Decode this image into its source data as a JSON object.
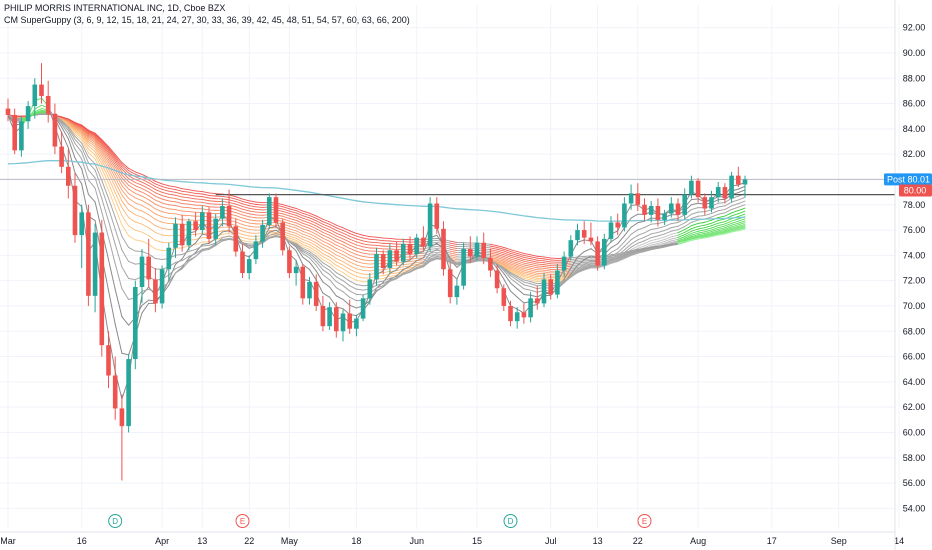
{
  "header": {
    "title": "PHILIP MORRIS INTERNATIONAL INC, 1D, Cboe BZX",
    "indicator": "CM SuperGuppy (3, 6, 9, 12, 15, 18, 21, 24, 27, 30, 33, 36, 39, 42, 45, 48, 51, 54, 57, 60, 63, 66, 200)"
  },
  "colors": {
    "up": "#26a69a",
    "down": "#ef5350",
    "ema200": "#7ec8d8",
    "gray": "#888888",
    "resistance": "#555555",
    "post_tag": "#2196f3",
    "price_tag": "#ef5350",
    "earnings_event": "#ef5350",
    "dividend_event": "#26a69a"
  },
  "price_tags": {
    "post_label": "Post",
    "post_value": "80.01",
    "last_value": "80.00"
  },
  "chart_data": {
    "type": "candlestick",
    "title": "PHILIP MORRIS INTERNATIONAL INC, 1D, Cboe BZX",
    "ylim": [
      53,
      93
    ],
    "y_ticks": [
      "92.00",
      "90.00",
      "88.00",
      "86.00",
      "84.00",
      "82.00",
      "80.00",
      "78.00",
      "76.00",
      "74.00",
      "72.00",
      "70.00",
      "68.00",
      "66.00",
      "64.00",
      "62.00",
      "60.00",
      "58.00",
      "56.00",
      "54.00"
    ],
    "x_ticks": [
      {
        "label": "Mar",
        "bar": 0
      },
      {
        "label": "16",
        "bar": 11
      },
      {
        "label": "Apr",
        "bar": 23
      },
      {
        "label": "13",
        "bar": 29
      },
      {
        "label": "22",
        "bar": 36
      },
      {
        "label": "May",
        "bar": 42
      },
      {
        "label": "18",
        "bar": 52
      },
      {
        "label": "Jun",
        "bar": 61
      },
      {
        "label": "15",
        "bar": 70
      },
      {
        "label": "Jul",
        "bar": 81
      },
      {
        "label": "13",
        "bar": 88
      },
      {
        "label": "22",
        "bar": 94
      },
      {
        "label": "Aug",
        "bar": 103
      },
      {
        "label": "17",
        "bar": 114
      },
      {
        "label": "Sep",
        "bar": 124
      },
      {
        "label": "14",
        "bar": 133
      }
    ],
    "events": [
      {
        "type": "D",
        "bar": 16
      },
      {
        "type": "E",
        "bar": 35
      },
      {
        "type": "D",
        "bar": 75
      },
      {
        "type": "E",
        "bar": 95
      }
    ],
    "resistance_level": 78.8,
    "post_price": 80.01,
    "last_price": 80.0,
    "ohlc": [
      [
        85.6,
        86.4,
        84.6,
        85.1
      ],
      [
        85.1,
        85.6,
        82.0,
        82.3
      ],
      [
        82.3,
        85.0,
        81.8,
        84.6
      ],
      [
        84.6,
        86.2,
        84.0,
        85.8
      ],
      [
        85.8,
        88.0,
        84.8,
        87.5
      ],
      [
        87.5,
        89.2,
        86.0,
        86.6
      ],
      [
        86.6,
        87.8,
        84.5,
        85.2
      ],
      [
        85.2,
        86.0,
        82.0,
        82.6
      ],
      [
        82.6,
        83.8,
        80.5,
        81.0
      ],
      [
        81.0,
        82.4,
        78.5,
        79.5
      ],
      [
        79.5,
        80.5,
        75.0,
        75.6
      ],
      [
        75.6,
        78.0,
        73.0,
        77.4
      ],
      [
        77.4,
        78.0,
        70.0,
        70.8
      ],
      [
        70.8,
        76.5,
        69.5,
        75.8
      ],
      [
        75.8,
        76.8,
        66.0,
        66.9
      ],
      [
        66.9,
        68.0,
        63.5,
        64.5
      ],
      [
        64.5,
        66.0,
        61.0,
        61.9
      ],
      [
        61.9,
        63.0,
        56.2,
        60.5
      ],
      [
        60.5,
        66.2,
        60.0,
        65.8
      ],
      [
        65.8,
        72.0,
        65.0,
        71.5
      ],
      [
        71.5,
        74.5,
        70.2,
        73.9
      ],
      [
        73.9,
        75.3,
        71.5,
        72.1
      ],
      [
        72.1,
        73.0,
        69.5,
        70.2
      ],
      [
        70.2,
        73.2,
        69.8,
        72.9
      ],
      [
        72.9,
        75.0,
        72.0,
        74.6
      ],
      [
        74.6,
        77.0,
        73.8,
        76.5
      ],
      [
        76.5,
        77.2,
        74.3,
        74.8
      ],
      [
        74.8,
        76.9,
        74.4,
        76.7
      ],
      [
        76.7,
        77.4,
        75.5,
        76.0
      ],
      [
        76.0,
        77.9,
        75.7,
        77.4
      ],
      [
        77.4,
        77.8,
        74.9,
        75.3
      ],
      [
        75.3,
        77.3,
        74.8,
        76.9
      ],
      [
        76.9,
        78.5,
        76.3,
        77.9
      ],
      [
        77.9,
        79.2,
        75.8,
        76.3
      ],
      [
        76.3,
        76.9,
        73.9,
        74.3
      ],
      [
        74.3,
        74.9,
        72.2,
        72.6
      ],
      [
        72.6,
        74.0,
        72.1,
        73.7
      ],
      [
        73.7,
        75.6,
        73.3,
        75.1
      ],
      [
        75.1,
        76.8,
        74.6,
        76.4
      ],
      [
        76.4,
        78.9,
        76.1,
        78.6
      ],
      [
        78.6,
        78.9,
        76.2,
        76.6
      ],
      [
        76.6,
        76.9,
        74.0,
        74.4
      ],
      [
        74.4,
        74.7,
        72.2,
        72.6
      ],
      [
        72.6,
        73.6,
        71.6,
        73.1
      ],
      [
        73.1,
        73.3,
        70.1,
        70.6
      ],
      [
        70.6,
        72.3,
        70.1,
        71.9
      ],
      [
        71.9,
        72.5,
        69.6,
        70.0
      ],
      [
        70.0,
        70.8,
        68.0,
        68.4
      ],
      [
        68.4,
        70.3,
        68.1,
        69.9
      ],
      [
        69.9,
        70.3,
        67.5,
        68.0
      ],
      [
        68.0,
        69.7,
        67.2,
        69.4
      ],
      [
        69.4,
        70.5,
        67.8,
        68.2
      ],
      [
        68.2,
        69.3,
        67.6,
        69.0
      ],
      [
        69.0,
        70.9,
        68.8,
        70.6
      ],
      [
        70.6,
        72.6,
        70.1,
        72.1
      ],
      [
        72.1,
        74.6,
        71.6,
        74.1
      ],
      [
        74.1,
        74.4,
        72.5,
        73.0
      ],
      [
        73.0,
        74.9,
        72.6,
        74.4
      ],
      [
        74.4,
        75.1,
        73.2,
        73.5
      ],
      [
        73.5,
        75.3,
        73.2,
        74.9
      ],
      [
        74.9,
        75.5,
        73.7,
        74.1
      ],
      [
        74.1,
        75.7,
        73.8,
        75.4
      ],
      [
        75.4,
        76.3,
        74.4,
        74.7
      ],
      [
        74.7,
        78.6,
        74.3,
        78.1
      ],
      [
        78.1,
        78.6,
        75.7,
        76.1
      ],
      [
        76.1,
        76.7,
        72.4,
        72.9
      ],
      [
        72.9,
        73.4,
        70.2,
        70.7
      ],
      [
        70.7,
        72.1,
        70.1,
        71.6
      ],
      [
        71.6,
        75.0,
        71.3,
        74.5
      ],
      [
        74.5,
        75.5,
        73.4,
        73.9
      ],
      [
        73.9,
        75.5,
        73.6,
        75.0
      ],
      [
        75.0,
        75.8,
        73.3,
        73.8
      ],
      [
        73.8,
        74.5,
        72.3,
        72.8
      ],
      [
        72.8,
        73.2,
        71.0,
        71.4
      ],
      [
        71.4,
        71.7,
        69.6,
        70.0
      ],
      [
        70.0,
        70.4,
        68.4,
        68.8
      ],
      [
        68.8,
        69.9,
        68.2,
        69.5
      ],
      [
        69.5,
        70.2,
        68.6,
        69.1
      ],
      [
        69.1,
        71.1,
        68.7,
        70.6
      ],
      [
        70.6,
        71.6,
        69.7,
        70.2
      ],
      [
        70.2,
        72.6,
        69.9,
        72.1
      ],
      [
        72.1,
        72.5,
        70.5,
        70.9
      ],
      [
        70.9,
        73.3,
        70.6,
        72.8
      ],
      [
        72.8,
        74.3,
        72.3,
        73.9
      ],
      [
        73.9,
        75.6,
        73.6,
        75.2
      ],
      [
        75.2,
        76.5,
        74.8,
        76.0
      ],
      [
        76.0,
        76.7,
        74.9,
        75.4
      ],
      [
        75.4,
        76.6,
        74.8,
        75.1
      ],
      [
        75.1,
        75.5,
        72.8,
        73.2
      ],
      [
        73.2,
        75.7,
        72.9,
        75.3
      ],
      [
        75.3,
        77.1,
        75.0,
        76.6
      ],
      [
        76.6,
        77.3,
        75.6,
        76.2
      ],
      [
        76.2,
        78.6,
        75.9,
        78.1
      ],
      [
        78.1,
        79.6,
        77.6,
        78.9
      ],
      [
        78.9,
        79.7,
        77.5,
        78.0
      ],
      [
        78.0,
        78.5,
        76.7,
        77.2
      ],
      [
        77.2,
        78.3,
        76.6,
        77.9
      ],
      [
        77.9,
        78.5,
        76.3,
        76.8
      ],
      [
        76.8,
        77.6,
        76.4,
        77.3
      ],
      [
        77.3,
        78.6,
        77.0,
        78.1
      ],
      [
        78.1,
        78.5,
        76.7,
        77.2
      ],
      [
        77.2,
        79.3,
        76.9,
        78.8
      ],
      [
        78.8,
        80.3,
        78.5,
        79.9
      ],
      [
        79.9,
        80.1,
        78.2,
        78.6
      ],
      [
        78.6,
        78.9,
        77.2,
        77.7
      ],
      [
        77.7,
        79.1,
        77.4,
        78.6
      ],
      [
        78.6,
        79.8,
        78.2,
        79.4
      ],
      [
        79.4,
        79.7,
        78.1,
        78.5
      ],
      [
        78.5,
        80.6,
        78.2,
        80.3
      ],
      [
        80.3,
        81.0,
        79.4,
        79.6
      ],
      [
        79.6,
        80.3,
        78.6,
        80.0
      ]
    ]
  }
}
